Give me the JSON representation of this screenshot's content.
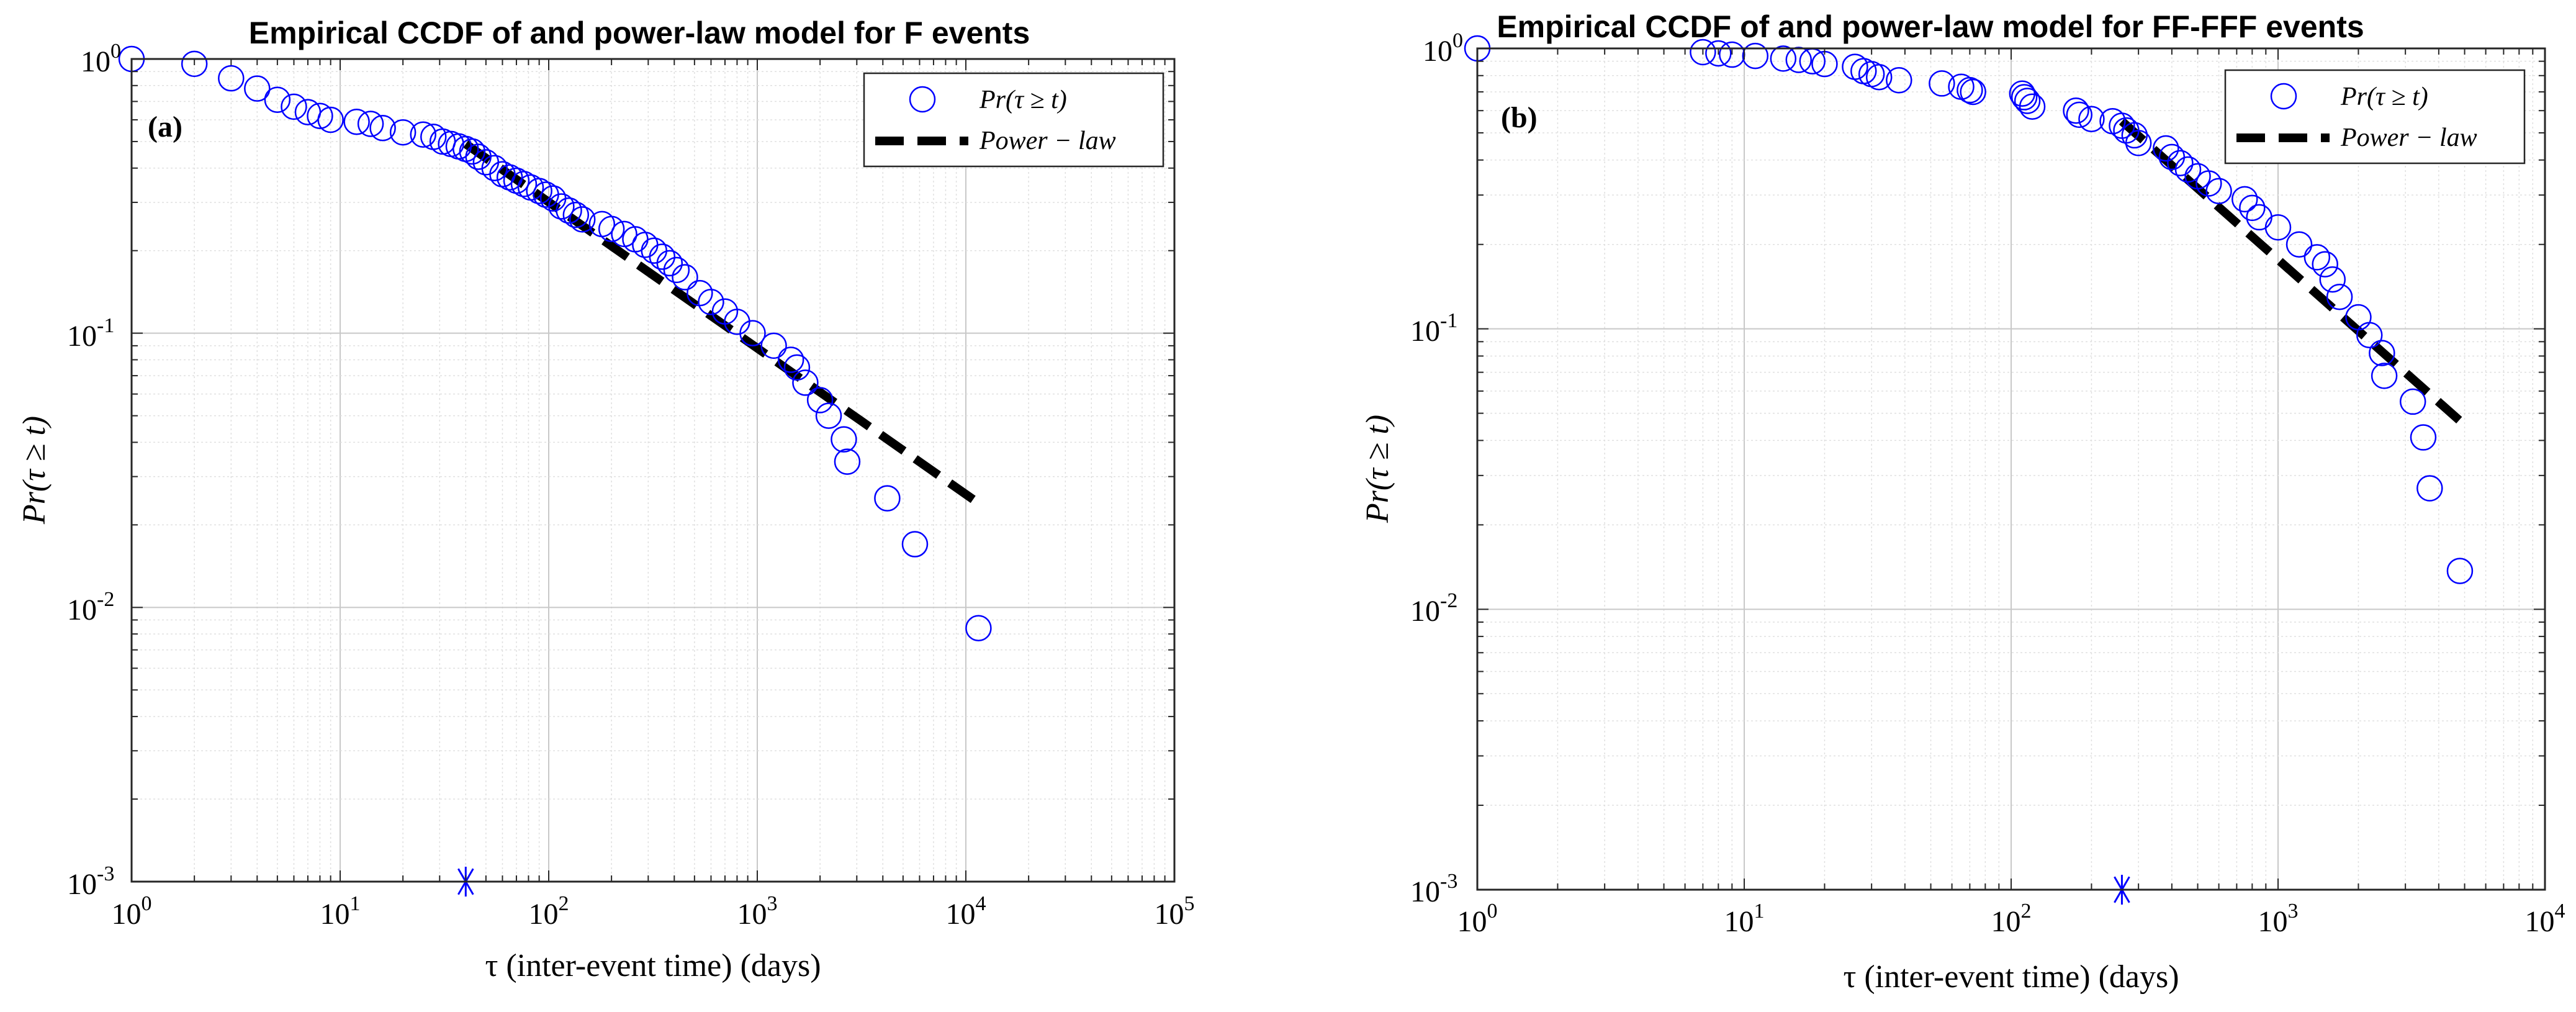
{
  "chart_data": [
    {
      "type": "scatter",
      "panel_label": "(a)",
      "title": "Empirical CCDF of and power-law model for F events",
      "xlabel": "τ (inter-event time) (days)",
      "ylabel": "Pr(τ ≥ t)",
      "xscale": "log",
      "yscale": "log",
      "xlim": [
        1,
        100000
      ],
      "ylim": [
        0.001,
        1
      ],
      "grid": true,
      "legend_position": "top-right",
      "legend": [
        "Pr(τ ≥ t)",
        "Power − law"
      ],
      "x_tick_labels": [
        "10",
        "10",
        "10",
        "10",
        "10",
        "10"
      ],
      "x_tick_exponents": [
        "0",
        "1",
        "2",
        "3",
        "4",
        "5"
      ],
      "y_tick_labels": [
        "10",
        "10",
        "10",
        "10"
      ],
      "y_tick_exponents": [
        "-3",
        "-2",
        "-1",
        "0"
      ],
      "series": [
        {
          "name": "Pr(τ ≥ t)",
          "style": "open-circle",
          "color": "#0000ff",
          "points": [
            [
              1,
              1.0
            ],
            [
              2,
              0.96
            ],
            [
              3,
              0.85
            ],
            [
              4,
              0.78
            ],
            [
              5,
              0.71
            ],
            [
              6,
              0.67
            ],
            [
              7,
              0.64
            ],
            [
              8,
              0.62
            ],
            [
              9,
              0.6
            ],
            [
              12,
              0.59
            ],
            [
              14,
              0.58
            ],
            [
              16,
              0.56
            ],
            [
              20,
              0.54
            ],
            [
              25,
              0.53
            ],
            [
              28,
              0.52
            ],
            [
              31,
              0.5
            ],
            [
              34,
              0.49
            ],
            [
              37,
              0.48
            ],
            [
              40,
              0.47
            ],
            [
              43,
              0.46
            ],
            [
              46,
              0.44
            ],
            [
              50,
              0.42
            ],
            [
              55,
              0.4
            ],
            [
              60,
              0.38
            ],
            [
              65,
              0.37
            ],
            [
              70,
              0.36
            ],
            [
              76,
              0.35
            ],
            [
              82,
              0.34
            ],
            [
              90,
              0.33
            ],
            [
              97,
              0.32
            ],
            [
              105,
              0.31
            ],
            [
              115,
              0.29
            ],
            [
              125,
              0.28
            ],
            [
              135,
              0.27
            ],
            [
              145,
              0.26
            ],
            [
              180,
              0.25
            ],
            [
              200,
              0.24
            ],
            [
              230,
              0.23
            ],
            [
              260,
              0.22
            ],
            [
              290,
              0.21
            ],
            [
              320,
              0.2
            ],
            [
              350,
              0.19
            ],
            [
              380,
              0.18
            ],
            [
              410,
              0.17
            ],
            [
              450,
              0.16
            ],
            [
              530,
              0.14
            ],
            [
              600,
              0.13
            ],
            [
              700,
              0.12
            ],
            [
              800,
              0.11
            ],
            [
              950,
              0.1
            ],
            [
              1200,
              0.09
            ],
            [
              1450,
              0.08
            ],
            [
              1550,
              0.075
            ],
            [
              1700,
              0.066
            ],
            [
              2000,
              0.057
            ],
            [
              2200,
              0.05
            ],
            [
              2600,
              0.041
            ],
            [
              2700,
              0.034
            ],
            [
              4200,
              0.025
            ],
            [
              5700,
              0.017
            ],
            [
              11500,
              0.0084
            ]
          ]
        },
        {
          "name": "Power − law",
          "style": "dashed-line",
          "color": "#000000",
          "points": [
            [
              40,
              0.49
            ],
            [
              11500,
              0.024
            ]
          ]
        },
        {
          "name": "x_min",
          "style": "asterisk",
          "color": "#0000ff",
          "points": [
            [
              40,
              0.001
            ]
          ]
        }
      ]
    },
    {
      "type": "scatter",
      "panel_label": "(b)",
      "title": "Empirical CCDF of and power-law model for FF-FFF events",
      "xlabel": "τ (inter-event time) (days)",
      "ylabel": "Pr(τ ≥ t)",
      "xscale": "log",
      "yscale": "log",
      "xlim": [
        1,
        10000
      ],
      "ylim": [
        0.001,
        1
      ],
      "grid": true,
      "legend_position": "top-right",
      "legend": [
        "Pr(τ ≥ t)",
        "Power − law"
      ],
      "x_tick_labels": [
        "10",
        "10",
        "10",
        "10",
        "10"
      ],
      "x_tick_exponents": [
        "0",
        "1",
        "2",
        "3",
        "4"
      ],
      "y_tick_labels": [
        "10",
        "10",
        "10",
        "10"
      ],
      "y_tick_exponents": [
        "-3",
        "-2",
        "-1",
        "0"
      ],
      "series": [
        {
          "name": "Pr(τ ≥ t)",
          "style": "open-circle",
          "color": "#0000ff",
          "points": [
            [
              1,
              1.0
            ],
            [
              7,
              0.97
            ],
            [
              8,
              0.96
            ],
            [
              9,
              0.95
            ],
            [
              11,
              0.94
            ],
            [
              14,
              0.92
            ],
            [
              16,
              0.91
            ],
            [
              18,
              0.9
            ],
            [
              20,
              0.88
            ],
            [
              26,
              0.86
            ],
            [
              28,
              0.83
            ],
            [
              30,
              0.81
            ],
            [
              32,
              0.79
            ],
            [
              38,
              0.77
            ],
            [
              55,
              0.75
            ],
            [
              65,
              0.73
            ],
            [
              70,
              0.71
            ],
            [
              72,
              0.7
            ],
            [
              110,
              0.69
            ],
            [
              112,
              0.67
            ],
            [
              115,
              0.65
            ],
            [
              120,
              0.62
            ],
            [
              175,
              0.6
            ],
            [
              180,
              0.58
            ],
            [
              200,
              0.56
            ],
            [
              240,
              0.55
            ],
            [
              260,
              0.53
            ],
            [
              270,
              0.51
            ],
            [
              290,
              0.49
            ],
            [
              300,
              0.46
            ],
            [
              380,
              0.44
            ],
            [
              400,
              0.41
            ],
            [
              430,
              0.39
            ],
            [
              460,
              0.37
            ],
            [
              500,
              0.35
            ],
            [
              550,
              0.33
            ],
            [
              600,
              0.31
            ],
            [
              750,
              0.29
            ],
            [
              800,
              0.27
            ],
            [
              850,
              0.25
            ],
            [
              1000,
              0.23
            ],
            [
              1200,
              0.2
            ],
            [
              1400,
              0.18
            ],
            [
              1500,
              0.17
            ],
            [
              1600,
              0.15
            ],
            [
              1700,
              0.13
            ],
            [
              2000,
              0.11
            ],
            [
              2200,
              0.095
            ],
            [
              2450,
              0.082
            ],
            [
              2500,
              0.068
            ],
            [
              3200,
              0.055
            ],
            [
              3500,
              0.041
            ],
            [
              3700,
              0.027
            ],
            [
              4800,
              0.0137
            ]
          ]
        },
        {
          "name": "Power − law",
          "style": "dashed-line",
          "color": "#000000",
          "points": [
            [
              260,
              0.55
            ],
            [
              4800,
              0.047
            ]
          ]
        },
        {
          "name": "x_min",
          "style": "asterisk",
          "color": "#0000ff",
          "points": [
            [
              260,
              0.001
            ]
          ]
        }
      ]
    }
  ]
}
